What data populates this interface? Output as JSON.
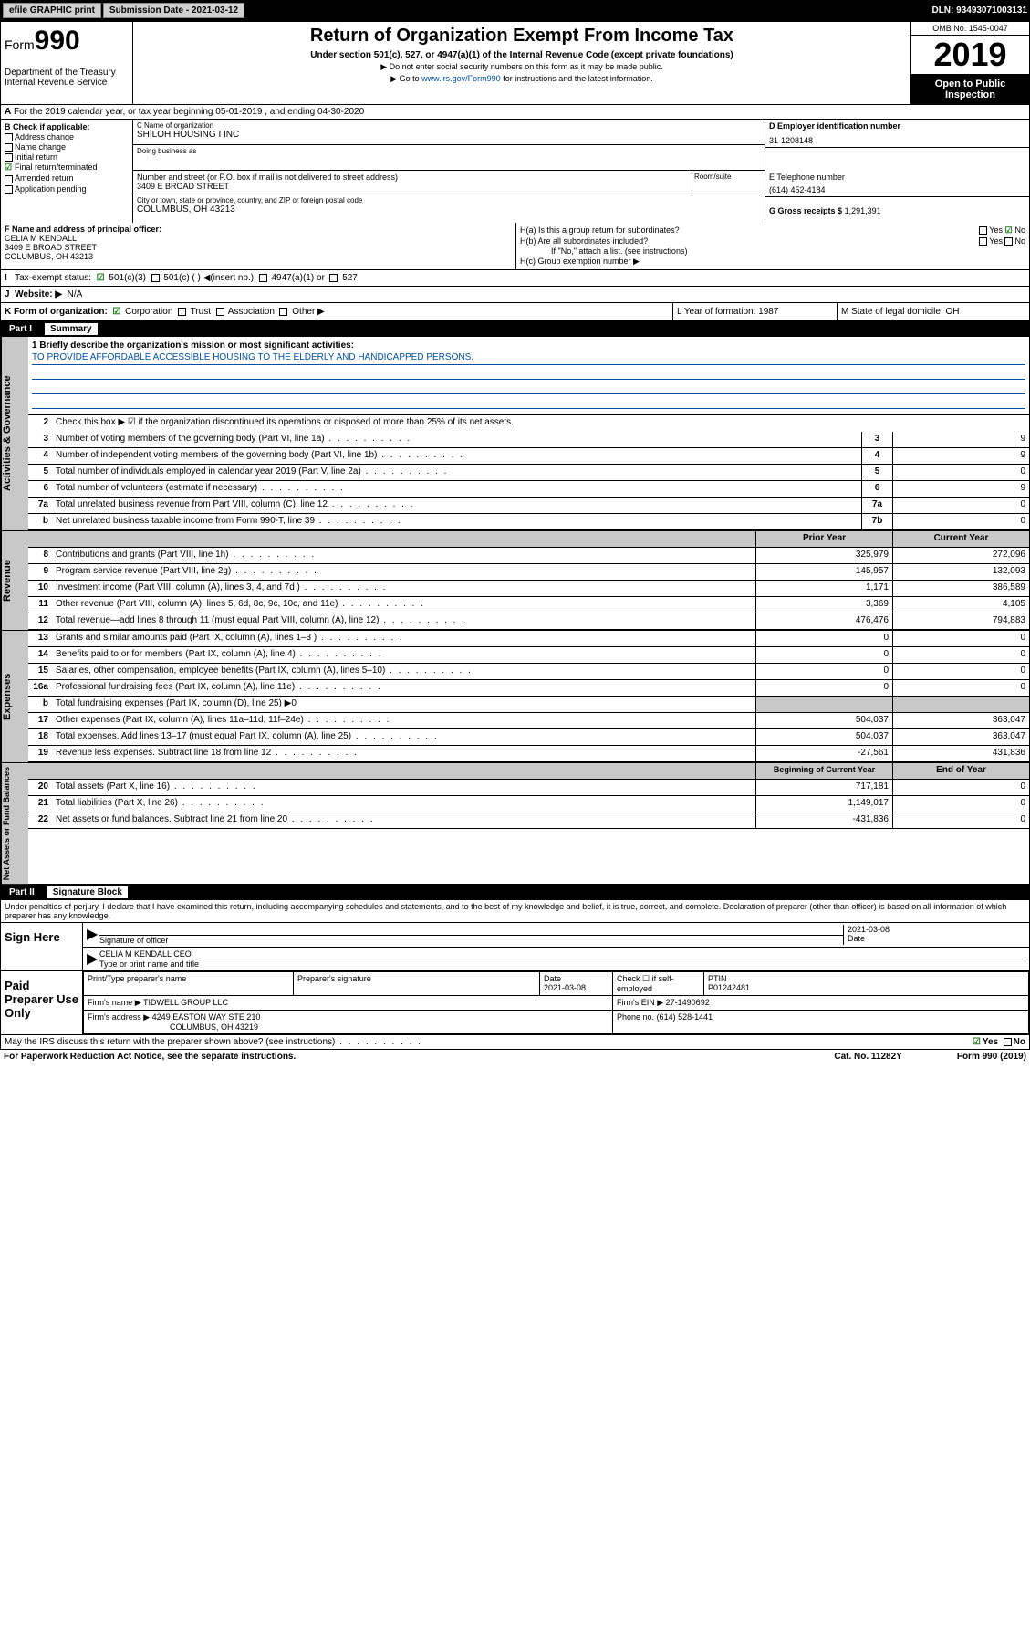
{
  "top": {
    "efile": "efile GRAPHIC print",
    "submission": "Submission Date - 2021-03-12",
    "dln": "DLN: 93493071003131"
  },
  "header": {
    "form_pre": "Form",
    "form_num": "990",
    "title": "Return of Organization Exempt From Income Tax",
    "subtitle": "Under section 501(c), 527, or 4947(a)(1) of the Internal Revenue Code (except private foundations)",
    "note1": "▶ Do not enter social security numbers on this form as it may be made public.",
    "note2_pre": "▶ Go to ",
    "note2_link": "www.irs.gov/Form990",
    "note2_post": " for instructions and the latest information.",
    "dept": "Department of the Treasury\nInternal Revenue Service",
    "omb": "OMB No. 1545-0047",
    "year": "2019",
    "open": "Open to Public Inspection"
  },
  "rowA": "For the 2019 calendar year, or tax year beginning 05-01-2019    , and ending 04-30-2020",
  "colB": {
    "lbl": "B Check if applicable:",
    "items": [
      "Address change",
      "Name change",
      "Initial return",
      "Final return/terminated",
      "Amended return",
      "Application pending"
    ],
    "checked": 3
  },
  "colC": {
    "name_lbl": "C Name of organization",
    "name": "SHILOH HOUSING I INC",
    "dba_lbl": "Doing business as",
    "addr_lbl": "Number and street (or P.O. box if mail is not delivered to street address)",
    "addr": "3409 E BROAD STREET",
    "room_lbl": "Room/suite",
    "city_lbl": "City or town, state or province, country, and ZIP or foreign postal code",
    "city": "COLUMBUS, OH  43213"
  },
  "colD": {
    "lbl": "D Employer identification number",
    "val": "31-1208148"
  },
  "colE": {
    "lbl": "E Telephone number",
    "val": "(614) 452-4184"
  },
  "colG": {
    "lbl": "G Gross receipts $",
    "val": "1,291,391"
  },
  "colF": {
    "lbl": "F  Name and address of principal officer:",
    "name": "CELIA M KENDALL",
    "addr1": "3409 E BROAD STREET",
    "addr2": "COLUMBUS, OH  43213"
  },
  "colH": {
    "a": "H(a)  Is this a group return for subordinates?",
    "a_yes": "Yes",
    "a_no": "No",
    "b": "H(b)  Are all subordinates included?",
    "b_yes": "Yes",
    "b_no": "No",
    "note": "If \"No,\" attach a list. (see instructions)",
    "c": "H(c)  Group exemption number ▶"
  },
  "rowI": {
    "lbl": "Tax-exempt status:",
    "o1": "501(c)(3)",
    "o2": "501(c) (   ) ◀(insert no.)",
    "o3": "4947(a)(1) or",
    "o4": "527"
  },
  "rowJ": {
    "lbl": "Website: ▶",
    "val": "N/A"
  },
  "rowK": {
    "lbl": "K Form of organization:",
    "o1": "Corporation",
    "o2": "Trust",
    "o3": "Association",
    "o4": "Other ▶",
    "l": "L Year of formation: 1987",
    "m": "M State of legal domicile: OH"
  },
  "part1": {
    "num": "Part I",
    "title": "Summary"
  },
  "summary": {
    "side1": "Activities & Governance",
    "side2": "Revenue",
    "side3": "Expenses",
    "side4": "Net Assets or Fund Balances",
    "q1_lbl": "1  Briefly describe the organization's mission or most significant activities:",
    "q1_val": "TO PROVIDE AFFORDABLE ACCESSIBLE HOUSING TO THE ELDERLY AND HANDICAPPED PERSONS.",
    "q2": "Check this box ▶ ☑ if the organization discontinued its operations or disposed of more than 25% of its net assets.",
    "rows_gov": [
      {
        "n": "3",
        "t": "Number of voting members of the governing body (Part VI, line 1a)",
        "b": "3",
        "v": "9"
      },
      {
        "n": "4",
        "t": "Number of independent voting members of the governing body (Part VI, line 1b)",
        "b": "4",
        "v": "9"
      },
      {
        "n": "5",
        "t": "Total number of individuals employed in calendar year 2019 (Part V, line 2a)",
        "b": "5",
        "v": "0"
      },
      {
        "n": "6",
        "t": "Total number of volunteers (estimate if necessary)",
        "b": "6",
        "v": "9"
      },
      {
        "n": "7a",
        "t": "Total unrelated business revenue from Part VIII, column (C), line 12",
        "b": "7a",
        "v": "0"
      },
      {
        "n": "b",
        "t": "Net unrelated business taxable income from Form 990-T, line 39",
        "b": "7b",
        "v": "0"
      }
    ],
    "col_hdr1": "Prior Year",
    "col_hdr2": "Current Year",
    "rows_rev": [
      {
        "n": "8",
        "t": "Contributions and grants (Part VIII, line 1h)",
        "p": "325,979",
        "c": "272,096"
      },
      {
        "n": "9",
        "t": "Program service revenue (Part VIII, line 2g)",
        "p": "145,957",
        "c": "132,093"
      },
      {
        "n": "10",
        "t": "Investment income (Part VIII, column (A), lines 3, 4, and 7d )",
        "p": "1,171",
        "c": "386,589"
      },
      {
        "n": "11",
        "t": "Other revenue (Part VIII, column (A), lines 5, 6d, 8c, 9c, 10c, and 11e)",
        "p": "3,369",
        "c": "4,105"
      },
      {
        "n": "12",
        "t": "Total revenue—add lines 8 through 11 (must equal Part VIII, column (A), line 12)",
        "p": "476,476",
        "c": "794,883"
      }
    ],
    "rows_exp": [
      {
        "n": "13",
        "t": "Grants and similar amounts paid (Part IX, column (A), lines 1–3 )",
        "p": "0",
        "c": "0"
      },
      {
        "n": "14",
        "t": "Benefits paid to or for members (Part IX, column (A), line 4)",
        "p": "0",
        "c": "0"
      },
      {
        "n": "15",
        "t": "Salaries, other compensation, employee benefits (Part IX, column (A), lines 5–10)",
        "p": "0",
        "c": "0"
      },
      {
        "n": "16a",
        "t": "Professional fundraising fees (Part IX, column (A), line 11e)",
        "p": "0",
        "c": "0"
      }
    ],
    "row16b": {
      "n": "b",
      "t": "Total fundraising expenses (Part IX, column (D), line 25) ▶0"
    },
    "rows_exp2": [
      {
        "n": "17",
        "t": "Other expenses (Part IX, column (A), lines 11a–11d, 11f–24e)",
        "p": "504,037",
        "c": "363,047"
      },
      {
        "n": "18",
        "t": "Total expenses. Add lines 13–17 (must equal Part IX, column (A), line 25)",
        "p": "504,037",
        "c": "363,047"
      },
      {
        "n": "19",
        "t": "Revenue less expenses. Subtract line 18 from line 12",
        "p": "-27,561",
        "c": "431,836"
      }
    ],
    "col_hdr3": "Beginning of Current Year",
    "col_hdr4": "End of Year",
    "rows_net": [
      {
        "n": "20",
        "t": "Total assets (Part X, line 16)",
        "p": "717,181",
        "c": "0"
      },
      {
        "n": "21",
        "t": "Total liabilities (Part X, line 26)",
        "p": "1,149,017",
        "c": "0"
      },
      {
        "n": "22",
        "t": "Net assets or fund balances. Subtract line 21 from line 20",
        "p": "-431,836",
        "c": "0"
      }
    ]
  },
  "part2": {
    "num": "Part II",
    "title": "Signature Block"
  },
  "sig": {
    "intro": "Under penalties of perjury, I declare that I have examined this return, including accompanying schedules and statements, and to the best of my knowledge and belief, it is true, correct, and complete. Declaration of preparer (other than officer) is based on all information of which preparer has any knowledge.",
    "here": "Sign Here",
    "sig_of": "Signature of officer",
    "date": "2021-03-08",
    "date_lbl": "Date",
    "name": "CELIA M KENDALL  CEO",
    "name_lbl": "Type or print name and title",
    "paid": "Paid Preparer Use Only",
    "prep_name_lbl": "Print/Type preparer's name",
    "prep_sig_lbl": "Preparer's signature",
    "prep_date_lbl": "Date",
    "prep_date": "2021-03-08",
    "check_lbl": "Check ☐ if self-employed",
    "ptin_lbl": "PTIN",
    "ptin": "P01242481",
    "firm_name_lbl": "Firm's name    ▶",
    "firm_name": "TIDWELL GROUP LLC",
    "firm_ein_lbl": "Firm's EIN ▶",
    "firm_ein": "27-1490692",
    "firm_addr_lbl": "Firm's address ▶",
    "firm_addr": "4249 EASTON WAY STE 210",
    "firm_city": "COLUMBUS, OH  43219",
    "phone_lbl": "Phone no.",
    "phone": "(614) 528-1441"
  },
  "footer": {
    "discuss": "May the IRS discuss this return with the preparer shown above? (see instructions)",
    "yes": "Yes",
    "no": "No",
    "pra": "For Paperwork Reduction Act Notice, see the separate instructions.",
    "cat": "Cat. No. 11282Y",
    "form": "Form 990 (2019)"
  }
}
